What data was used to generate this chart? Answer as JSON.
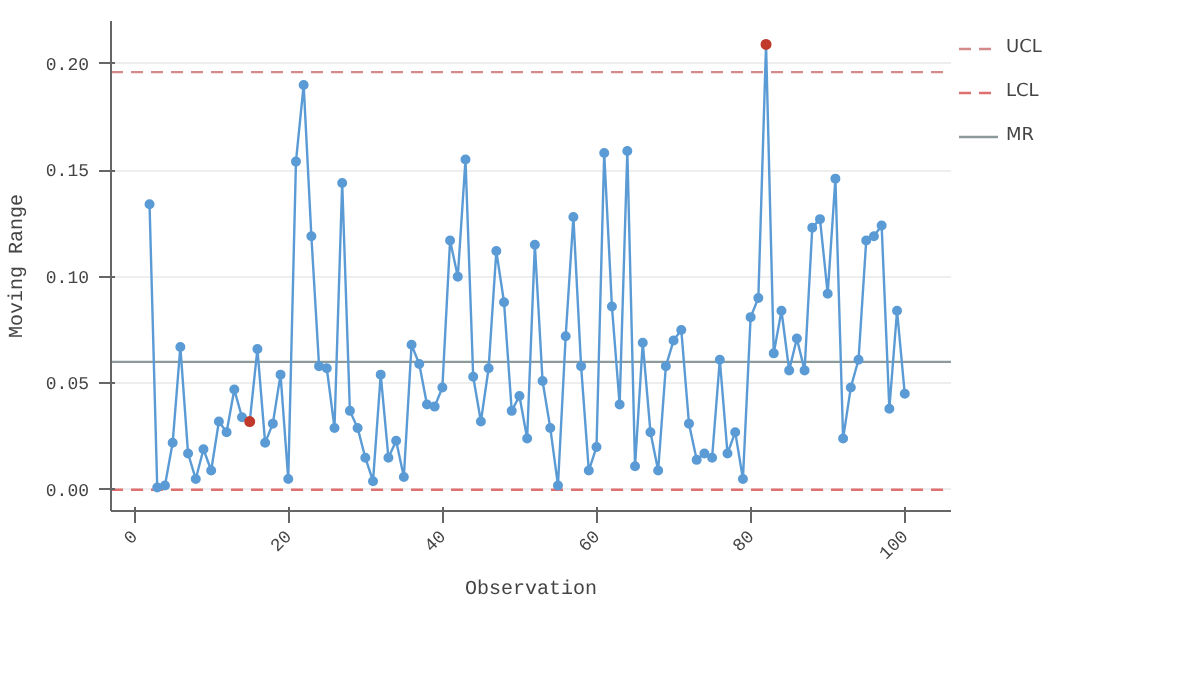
{
  "chart_data": {
    "type": "line",
    "xlabel": "Observation",
    "ylabel": "Moving Range",
    "xlim": [
      -3,
      106
    ],
    "ylim": [
      -0.01,
      0.22
    ],
    "xticks": [
      0,
      20,
      40,
      60,
      80,
      100
    ],
    "yticks": [
      {
        "value": 0,
        "label": "0.00"
      },
      {
        "value": 0.05,
        "label": "0.05"
      },
      {
        "value": 0.1,
        "label": "0.10"
      },
      {
        "value": 0.15,
        "label": "0.15"
      },
      {
        "value": 0.2,
        "label": "0.20"
      }
    ],
    "grid": "y",
    "legend": "top right",
    "marker": "circle",
    "line_style": "solid",
    "ref_lines": [
      {
        "axis": "y",
        "value": 0.196,
        "label": "UCL",
        "color": "#d48a8a",
        "line_style": "dashed"
      },
      {
        "axis": "y",
        "value": 0,
        "label": "LCL",
        "color": "#e07070",
        "line_style": "dashed"
      },
      {
        "axis": "y",
        "value": 0.06,
        "label": "MR",
        "color": "#8c9a9a",
        "line_style": "solid"
      }
    ],
    "series": [
      {
        "color": "#5b9bd5",
        "x": [
          2,
          3,
          4,
          5,
          6,
          7,
          8,
          9,
          10,
          11,
          12,
          13,
          14,
          15,
          16,
          17,
          18,
          19,
          20,
          21,
          22,
          23,
          24,
          25,
          26,
          27,
          28,
          29,
          30,
          31,
          32,
          33,
          34,
          35,
          36,
          37,
          38,
          39,
          40,
          41,
          42,
          43,
          44,
          45,
          46,
          47,
          48,
          49,
          50,
          51,
          52,
          53,
          54,
          55,
          56,
          57,
          58,
          59,
          60,
          61,
          62,
          63,
          64,
          65,
          66,
          67,
          68,
          69,
          70,
          71,
          72,
          73,
          74,
          75,
          76,
          77,
          78,
          79,
          80,
          81,
          82,
          83,
          84,
          85,
          86,
          87,
          88,
          89,
          90,
          91,
          92,
          93,
          94,
          95,
          96,
          97,
          98,
          99,
          100
        ],
        "values": [
          0.134,
          0.001,
          0.002,
          0.022,
          0.067,
          0.017,
          0.005,
          0.019,
          0.009,
          0.032,
          0.027,
          0.047,
          0.034,
          0.032,
          0.066,
          0.022,
          0.031,
          0.054,
          0.005,
          0.154,
          0.19,
          0.119,
          0.058,
          0.057,
          0.029,
          0.144,
          0.037,
          0.029,
          0.015,
          0.004,
          0.054,
          0.015,
          0.023,
          0.006,
          0.068,
          0.059,
          0.04,
          0.039,
          0.048,
          0.117,
          0.1,
          0.155,
          0.053,
          0.032,
          0.057,
          0.112,
          0.088,
          0.037,
          0.044,
          0.024,
          0.115,
          0.051,
          0.029,
          0.002,
          0.072,
          0.128,
          0.058,
          0.009,
          0.02,
          0.158,
          0.086,
          0.04,
          0.159,
          0.011,
          0.069,
          0.027,
          0.009,
          0.058,
          0.07,
          0.075,
          0.031,
          0.014,
          0.017,
          0.015,
          0.061,
          0.017,
          0.027,
          0.005,
          0.081,
          0.09,
          0.209,
          0.064,
          0.084,
          0.056,
          0.071,
          0.056,
          0.123,
          0.127,
          0.092,
          0.146,
          0.024,
          0.048,
          0.061,
          0.117,
          0.119,
          0.124,
          0.038,
          0.084,
          0.045
        ]
      },
      {
        "type": "scatter",
        "color": "#c0392b",
        "x": [
          15,
          82
        ],
        "values": [
          0.032,
          0.209
        ]
      }
    ]
  }
}
